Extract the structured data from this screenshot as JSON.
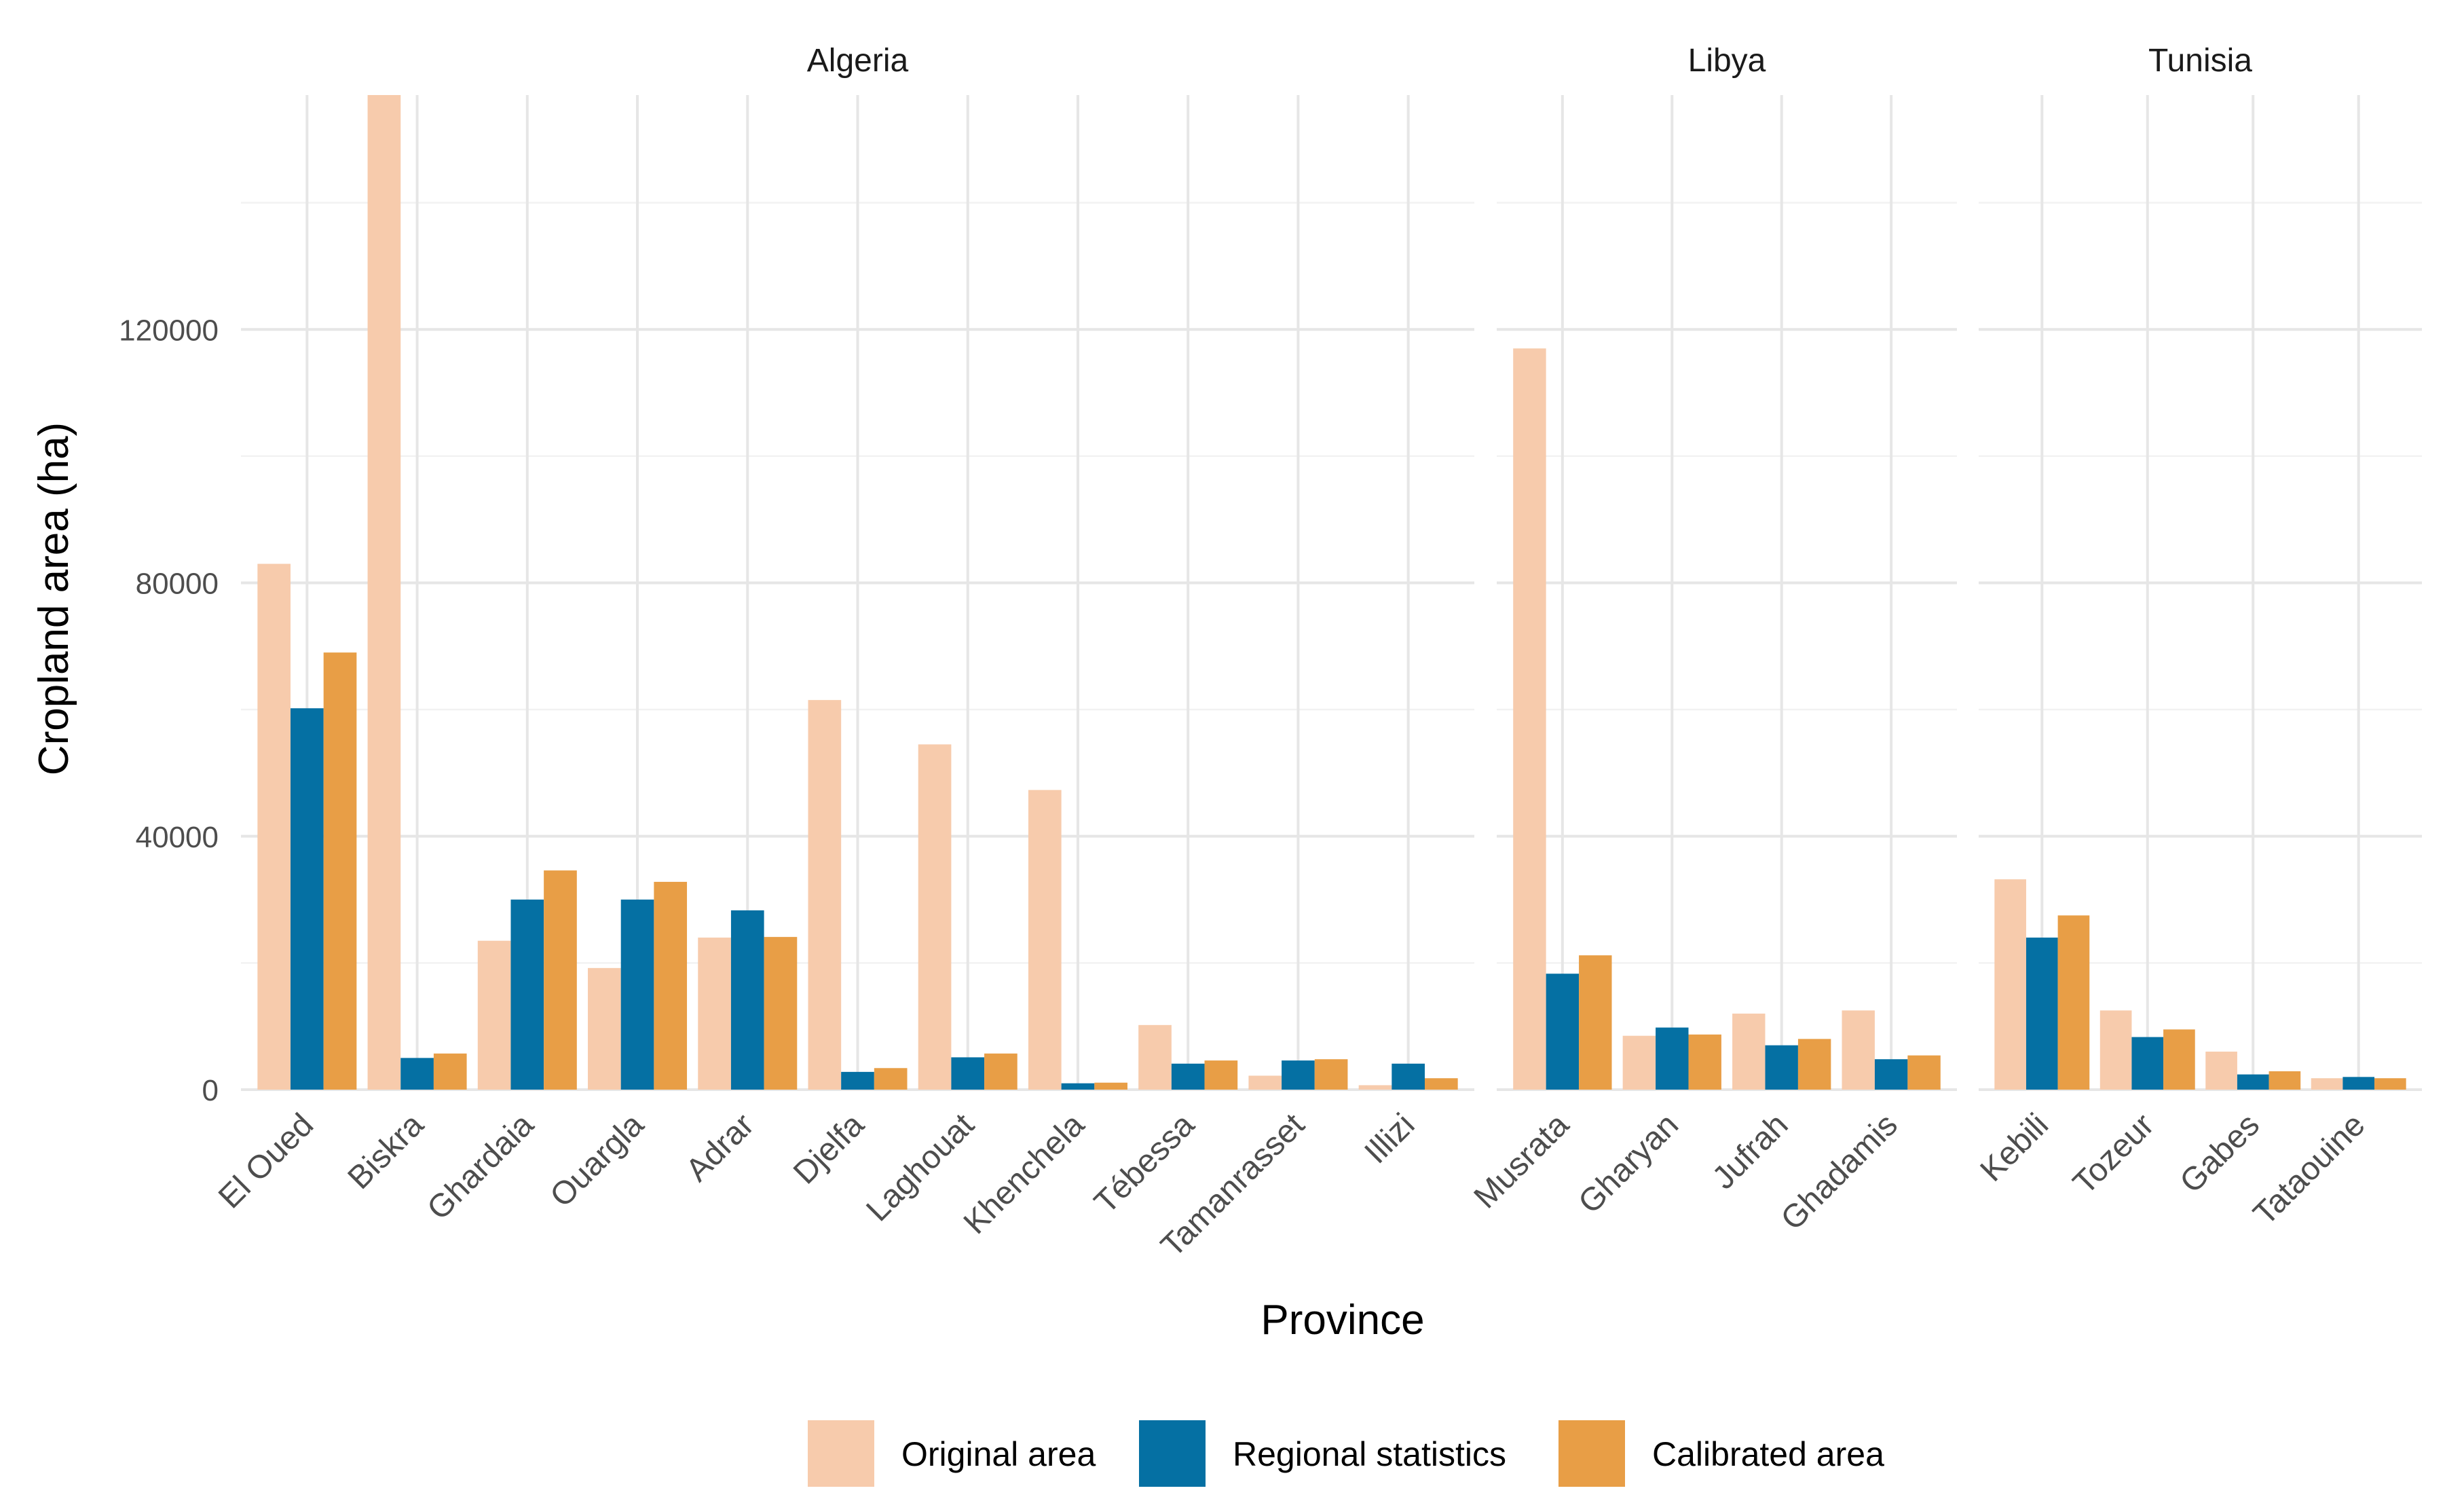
{
  "chart_data": {
    "type": "bar",
    "xlabel": "Province",
    "ylabel": "Cropland area (ha)",
    "ylim": [
      0,
      157000
    ],
    "y_ticks": [
      0,
      40000,
      80000,
      120000
    ],
    "y_tick_labels": [
      "0",
      "40000",
      "80000",
      "120000"
    ],
    "grid": true,
    "legend_position": "bottom",
    "series": [
      {
        "name": "Original area",
        "color": "#F7CBAC"
      },
      {
        "name": "Regional statistics",
        "color": "#0570A3"
      },
      {
        "name": "Calibrated area",
        "color": "#E89E46"
      }
    ],
    "panels": [
      {
        "name": "Algeria",
        "categories": [
          "El Oued",
          "Biskra",
          "Ghardaia",
          "Ouargla",
          "Adrar",
          "Djelfa",
          "Laghouat",
          "Khenchela",
          "Tébessa",
          "Tamanrasset",
          "Illizi"
        ],
        "values": {
          "Original area": [
            83000,
            157000,
            23500,
            19200,
            24000,
            61500,
            54500,
            47300,
            10200,
            2200,
            700
          ],
          "Regional statistics": [
            60200,
            5000,
            30000,
            30000,
            28300,
            2800,
            5100,
            1000,
            4100,
            4600,
            4100
          ],
          "Calibrated area": [
            69000,
            5700,
            34600,
            32800,
            24100,
            3400,
            5700,
            1100,
            4600,
            4800,
            1800
          ]
        }
      },
      {
        "name": "Libya",
        "categories": [
          "Musrata",
          "Gharyan",
          "Jufrah",
          "Ghadamis"
        ],
        "values": {
          "Original area": [
            117000,
            8500,
            12000,
            12500
          ],
          "Regional statistics": [
            18300,
            9800,
            7000,
            4800
          ],
          "Calibrated area": [
            21200,
            8700,
            8000,
            5400
          ]
        }
      },
      {
        "name": "Tunisia",
        "categories": [
          "Kebili",
          "Tozeur",
          "Gabes",
          "Tataouine"
        ],
        "values": {
          "Original area": [
            33200,
            12500,
            6000,
            1800
          ],
          "Regional statistics": [
            24000,
            8300,
            2400,
            2000
          ],
          "Calibrated area": [
            27500,
            9500,
            2900,
            1800
          ]
        }
      }
    ]
  }
}
